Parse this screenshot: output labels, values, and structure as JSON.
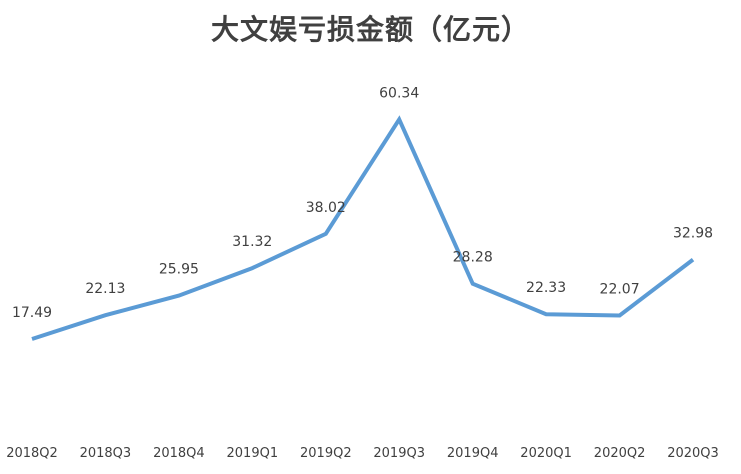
{
  "chart_data": {
    "type": "line",
    "title": "大文娱亏损金额（亿元）",
    "xlabel": "",
    "ylabel": "",
    "categories": [
      "2018Q2",
      "2018Q3",
      "2018Q4",
      "2019Q1",
      "2019Q2",
      "2019Q3",
      "2019Q4",
      "2020Q1",
      "2020Q2",
      "2020Q3"
    ],
    "series": [
      {
        "values": [
          17.49,
          22.13,
          25.95,
          31.32,
          38.02,
          60.34,
          28.28,
          22.33,
          22.07,
          32.98
        ],
        "labels": [
          "17.49",
          "22.13",
          "25.95",
          "31.32",
          "38.02",
          "60.34",
          "28.28",
          "22.33",
          "22.07",
          "32.98"
        ],
        "color": "#5B9BD5"
      }
    ],
    "grid": false,
    "legend": "none"
  }
}
